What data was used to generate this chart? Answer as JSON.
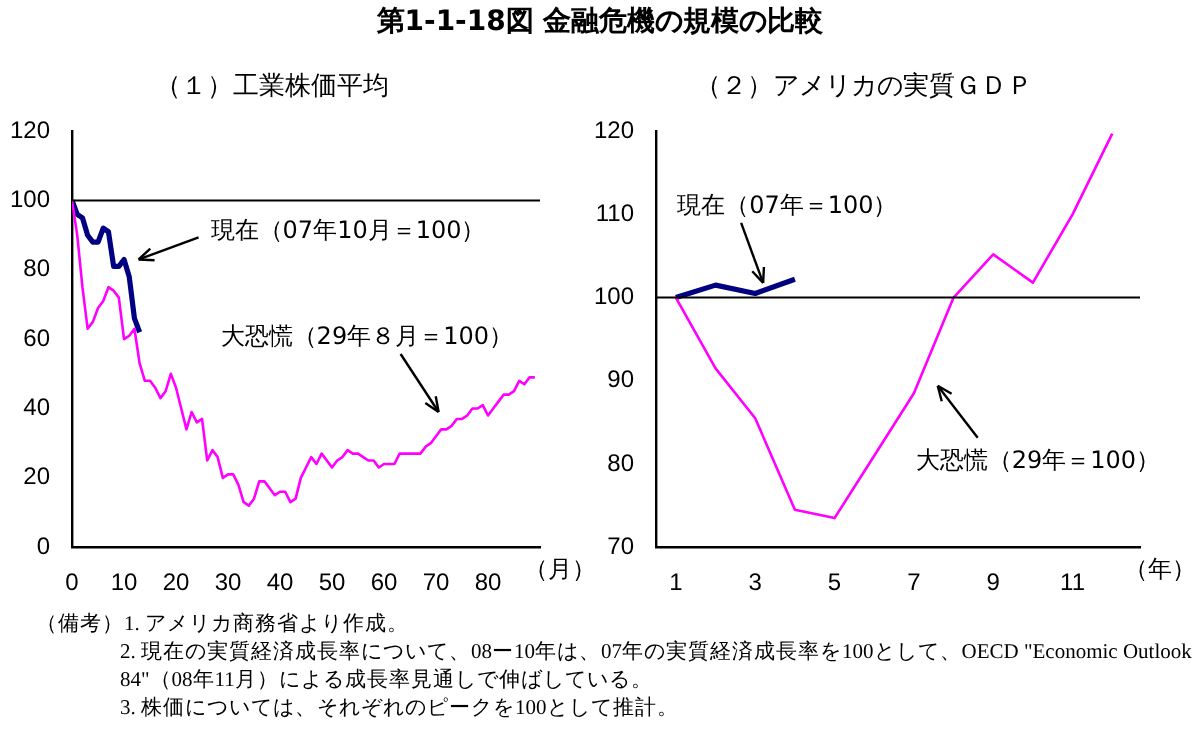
{
  "chart_data": [
    {
      "type": "other",
      "title": "第1-1-18図 金融危機の規模の比較",
      "annotations": [
        "（備考）1. アメリカ商務省より作成。",
        "2. 現在の実質経済成長率について、08ー10年は、07年の実質経済成長率を100として、OECD \"Economic Outlook 84\"（08年11月）による成長率見通しで伸ばしている。",
        "3. 株価については、それぞれのピークを100として推計。"
      ]
    },
    {
      "type": "line",
      "title": "（１）工業株価平均",
      "xlabel": "（月）",
      "x": [
        0,
        1,
        2,
        3,
        4,
        5,
        6,
        7,
        8,
        9,
        10,
        11,
        12,
        13,
        14,
        15,
        16,
        17,
        18,
        19,
        20,
        21,
        22,
        23,
        24,
        25,
        26,
        27,
        28,
        29,
        30,
        31,
        32,
        33,
        34,
        35,
        36,
        37,
        38,
        39,
        40,
        41,
        42,
        43,
        44,
        45,
        46,
        47,
        48,
        49,
        50,
        51,
        52,
        53,
        54,
        55,
        56,
        57,
        58,
        59,
        60,
        61,
        62,
        63,
        64,
        65,
        66,
        67,
        68,
        69,
        70,
        71,
        72,
        73,
        74,
        75,
        76,
        77,
        78,
        79,
        80,
        81,
        82,
        83,
        84,
        85,
        86,
        87,
        88,
        89
      ],
      "series": [
        {
          "color": "#ff00ff",
          "values": [
            100,
            90,
            75,
            63,
            65,
            69,
            71,
            75,
            74,
            72,
            60,
            61,
            63,
            53,
            48,
            48,
            46,
            43,
            45,
            50,
            46,
            40,
            34,
            39,
            36,
            37,
            25,
            28,
            26,
            20,
            21,
            21,
            18,
            13,
            12,
            14,
            19,
            19,
            17,
            15,
            16,
            16,
            13,
            14,
            20,
            23,
            26,
            24,
            27,
            25,
            23,
            25,
            26,
            28,
            27,
            27,
            26,
            25,
            25,
            23,
            24,
            24,
            24,
            27,
            27,
            27,
            27,
            27,
            29,
            30,
            32,
            34,
            34,
            35,
            37,
            37,
            38,
            40,
            40,
            41,
            38,
            40,
            42,
            44,
            44,
            45,
            48,
            47,
            49,
            49
          ]
        },
        {
          "color": "#000080",
          "x": [
            0,
            1,
            2,
            3,
            4,
            5,
            6,
            7,
            8,
            9,
            10,
            11,
            12,
            13
          ],
          "values": [
            100,
            96,
            95,
            90,
            88,
            88,
            92,
            91,
            81,
            81,
            83,
            78,
            66,
            62
          ]
        }
      ],
      "xlim": [
        0,
        90
      ],
      "xticks": [
        0,
        10,
        20,
        30,
        40,
        50,
        60,
        70,
        80
      ],
      "ylim": [
        0,
        120
      ],
      "yticks": [
        0,
        20,
        40,
        60,
        80,
        100,
        120
      ],
      "ref_lines": [
        {
          "axis": "y",
          "value": 100,
          "color": "#000000"
        }
      ],
      "annotations": [
        "現在（07年10月＝100）",
        "大恐慌（29年８月＝100）"
      ],
      "grid": false,
      "legend": false,
      "marker": "none",
      "line_style": "solid"
    },
    {
      "type": "line",
      "title": "（２）アメリカの実質ＧＤＰ",
      "xlabel": "（年）",
      "x": [
        1,
        2,
        3,
        4,
        5,
        6,
        7,
        8,
        9,
        10,
        11,
        12
      ],
      "series": [
        {
          "color": "#ff00ff",
          "values": [
            100,
            91.5,
            85.5,
            74.5,
            73.5,
            81,
            88.5,
            100,
            105.2,
            101.8,
            110,
            119.7
          ]
        },
        {
          "color": "#000080",
          "x": [
            1,
            2,
            3,
            4
          ],
          "values": [
            100,
            101.5,
            100.5,
            102.2
          ]
        }
      ],
      "xlim": [
        0.5,
        12.7
      ],
      "xticks": [
        1,
        3,
        5,
        7,
        9,
        11
      ],
      "ylim": [
        70,
        120
      ],
      "yticks": [
        70,
        80,
        90,
        100,
        110,
        120
      ],
      "ref_lines": [
        {
          "axis": "y",
          "value": 100,
          "color": "#000000"
        }
      ],
      "annotations": [
        {
          "text": "現在（07年＝100）",
          "x": 3.2,
          "y": 100.8
        },
        "大恐慌（29年＝100）"
      ],
      "grid": false,
      "legend": false,
      "marker": "none",
      "line_style": "solid"
    }
  ]
}
